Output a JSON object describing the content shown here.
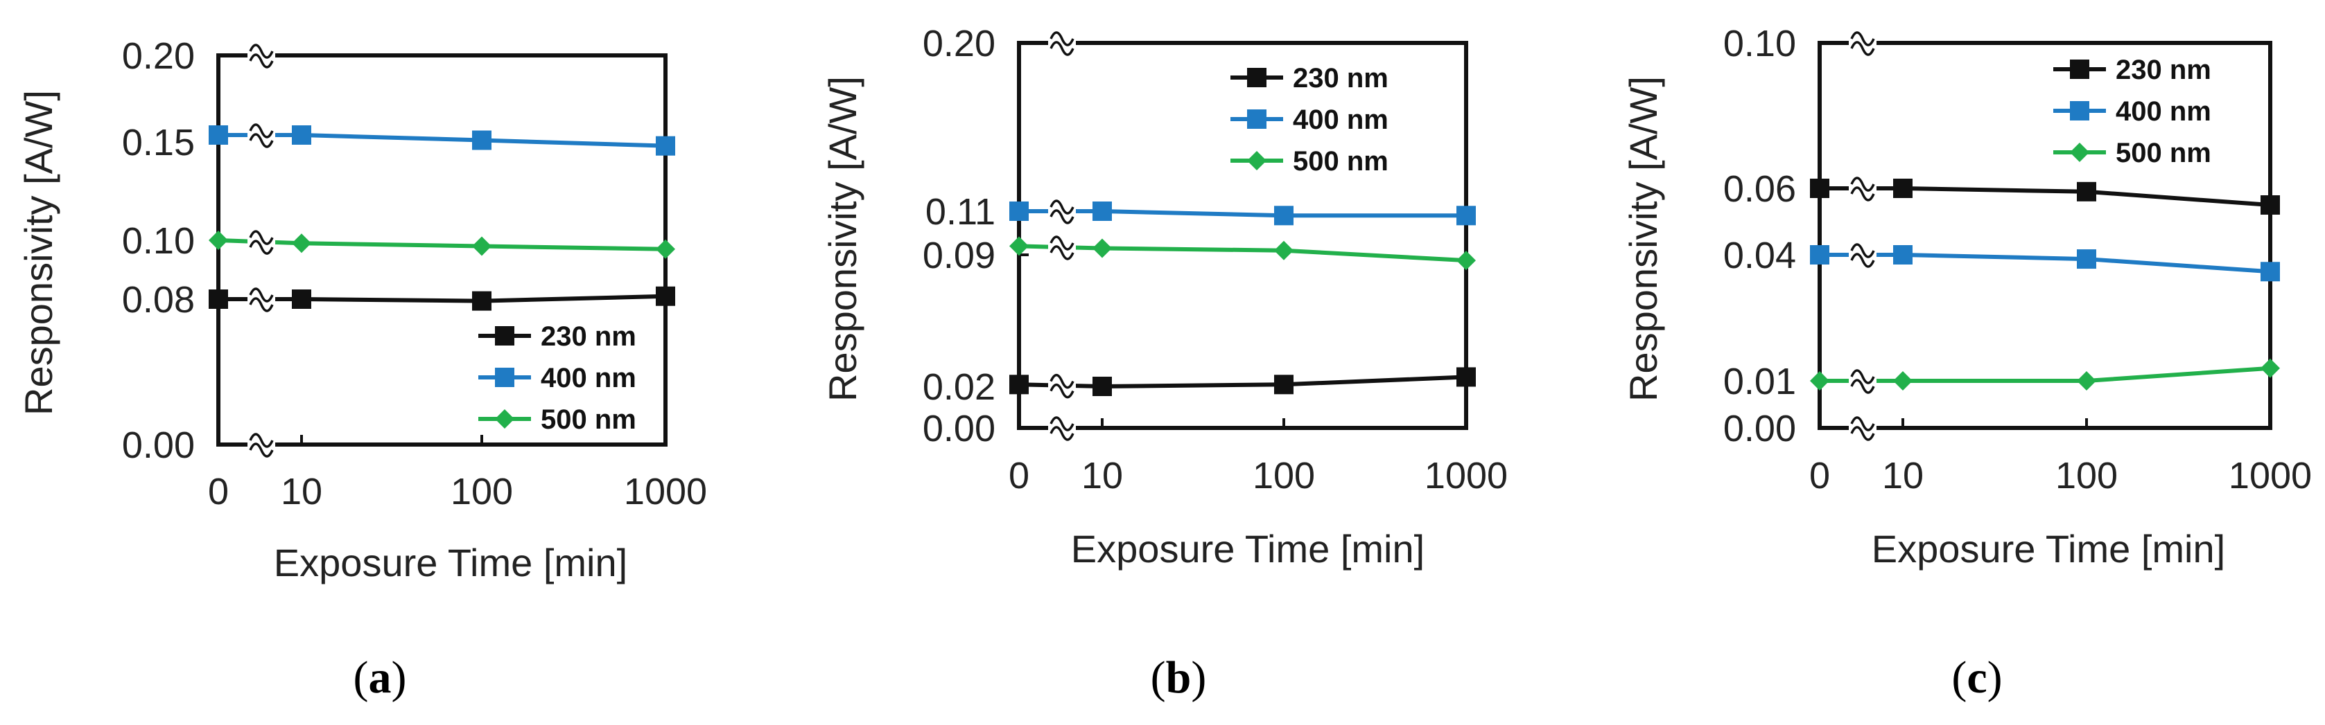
{
  "chart_data": [
    {
      "type": "line",
      "panel": "a",
      "caption": "a",
      "xlabel": "Exposure Time [min]",
      "ylabel": "Responsivity [A/W]",
      "x": [
        0,
        10,
        100,
        1000
      ],
      "xtick_labels": [
        "0",
        "10",
        "100",
        "1000"
      ],
      "ytick_values": [
        0.0,
        0.08,
        0.1,
        0.15,
        0.2
      ],
      "ytick_labels": [
        "0.00",
        "0.08",
        "0.10",
        "0.15",
        "0.20"
      ],
      "axis_break": true,
      "legend_position": "bottom-right",
      "series": [
        {
          "name": "230 nm",
          "color": "#111111",
          "marker": "square",
          "values": [
            0.08,
            0.08,
            0.079,
            0.081
          ]
        },
        {
          "name": "400 nm",
          "color": "#1f7bc4",
          "marker": "square",
          "values": [
            0.154,
            0.154,
            0.151,
            0.148
          ]
        },
        {
          "name": "500 nm",
          "color": "#22b04b",
          "marker": "diamond",
          "values": [
            0.1,
            0.099,
            0.098,
            0.097
          ]
        }
      ]
    },
    {
      "type": "line",
      "panel": "b",
      "caption": "b",
      "xlabel": "Exposure Time [min]",
      "ylabel": "Responsivity [A/W]",
      "x": [
        0,
        10,
        100,
        1000
      ],
      "xtick_labels": [
        "0",
        "10",
        "100",
        "1000"
      ],
      "ytick_values": [
        0.0,
        0.02,
        0.09,
        0.11,
        0.2
      ],
      "ytick_labels": [
        "0.00",
        "0.02",
        "0.09",
        "0.11",
        "0.20"
      ],
      "axis_break": true,
      "legend_position": "top-right",
      "series": [
        {
          "name": "230 nm",
          "color": "#111111",
          "marker": "square",
          "values": [
            0.021,
            0.02,
            0.021,
            0.025
          ]
        },
        {
          "name": "400 nm",
          "color": "#1f7bc4",
          "marker": "square",
          "values": [
            0.11,
            0.11,
            0.108,
            0.108
          ]
        },
        {
          "name": "500 nm",
          "color": "#22b04b",
          "marker": "diamond",
          "values": [
            0.094,
            0.093,
            0.092,
            0.087
          ]
        }
      ]
    },
    {
      "type": "line",
      "panel": "c",
      "caption": "c",
      "xlabel": "Exposure Time [min]",
      "ylabel": "Responsivity [A/W]",
      "x": [
        0,
        10,
        100,
        1000
      ],
      "xtick_labels": [
        "0",
        "10",
        "100",
        "1000"
      ],
      "ytick_values": [
        0.0,
        0.01,
        0.04,
        0.06,
        0.1
      ],
      "ytick_labels": [
        "0.00",
        "0.01",
        "0.04",
        "0.06",
        "0.10"
      ],
      "axis_break": true,
      "legend_position": "top-right",
      "series": [
        {
          "name": "230 nm",
          "color": "#111111",
          "marker": "square",
          "values": [
            0.06,
            0.06,
            0.059,
            0.055
          ]
        },
        {
          "name": "400 nm",
          "color": "#1f7bc4",
          "marker": "square",
          "values": [
            0.04,
            0.04,
            0.039,
            0.036
          ]
        },
        {
          "name": "500 nm",
          "color": "#22b04b",
          "marker": "diamond",
          "values": [
            0.01,
            0.01,
            0.01,
            0.013
          ]
        }
      ]
    }
  ]
}
